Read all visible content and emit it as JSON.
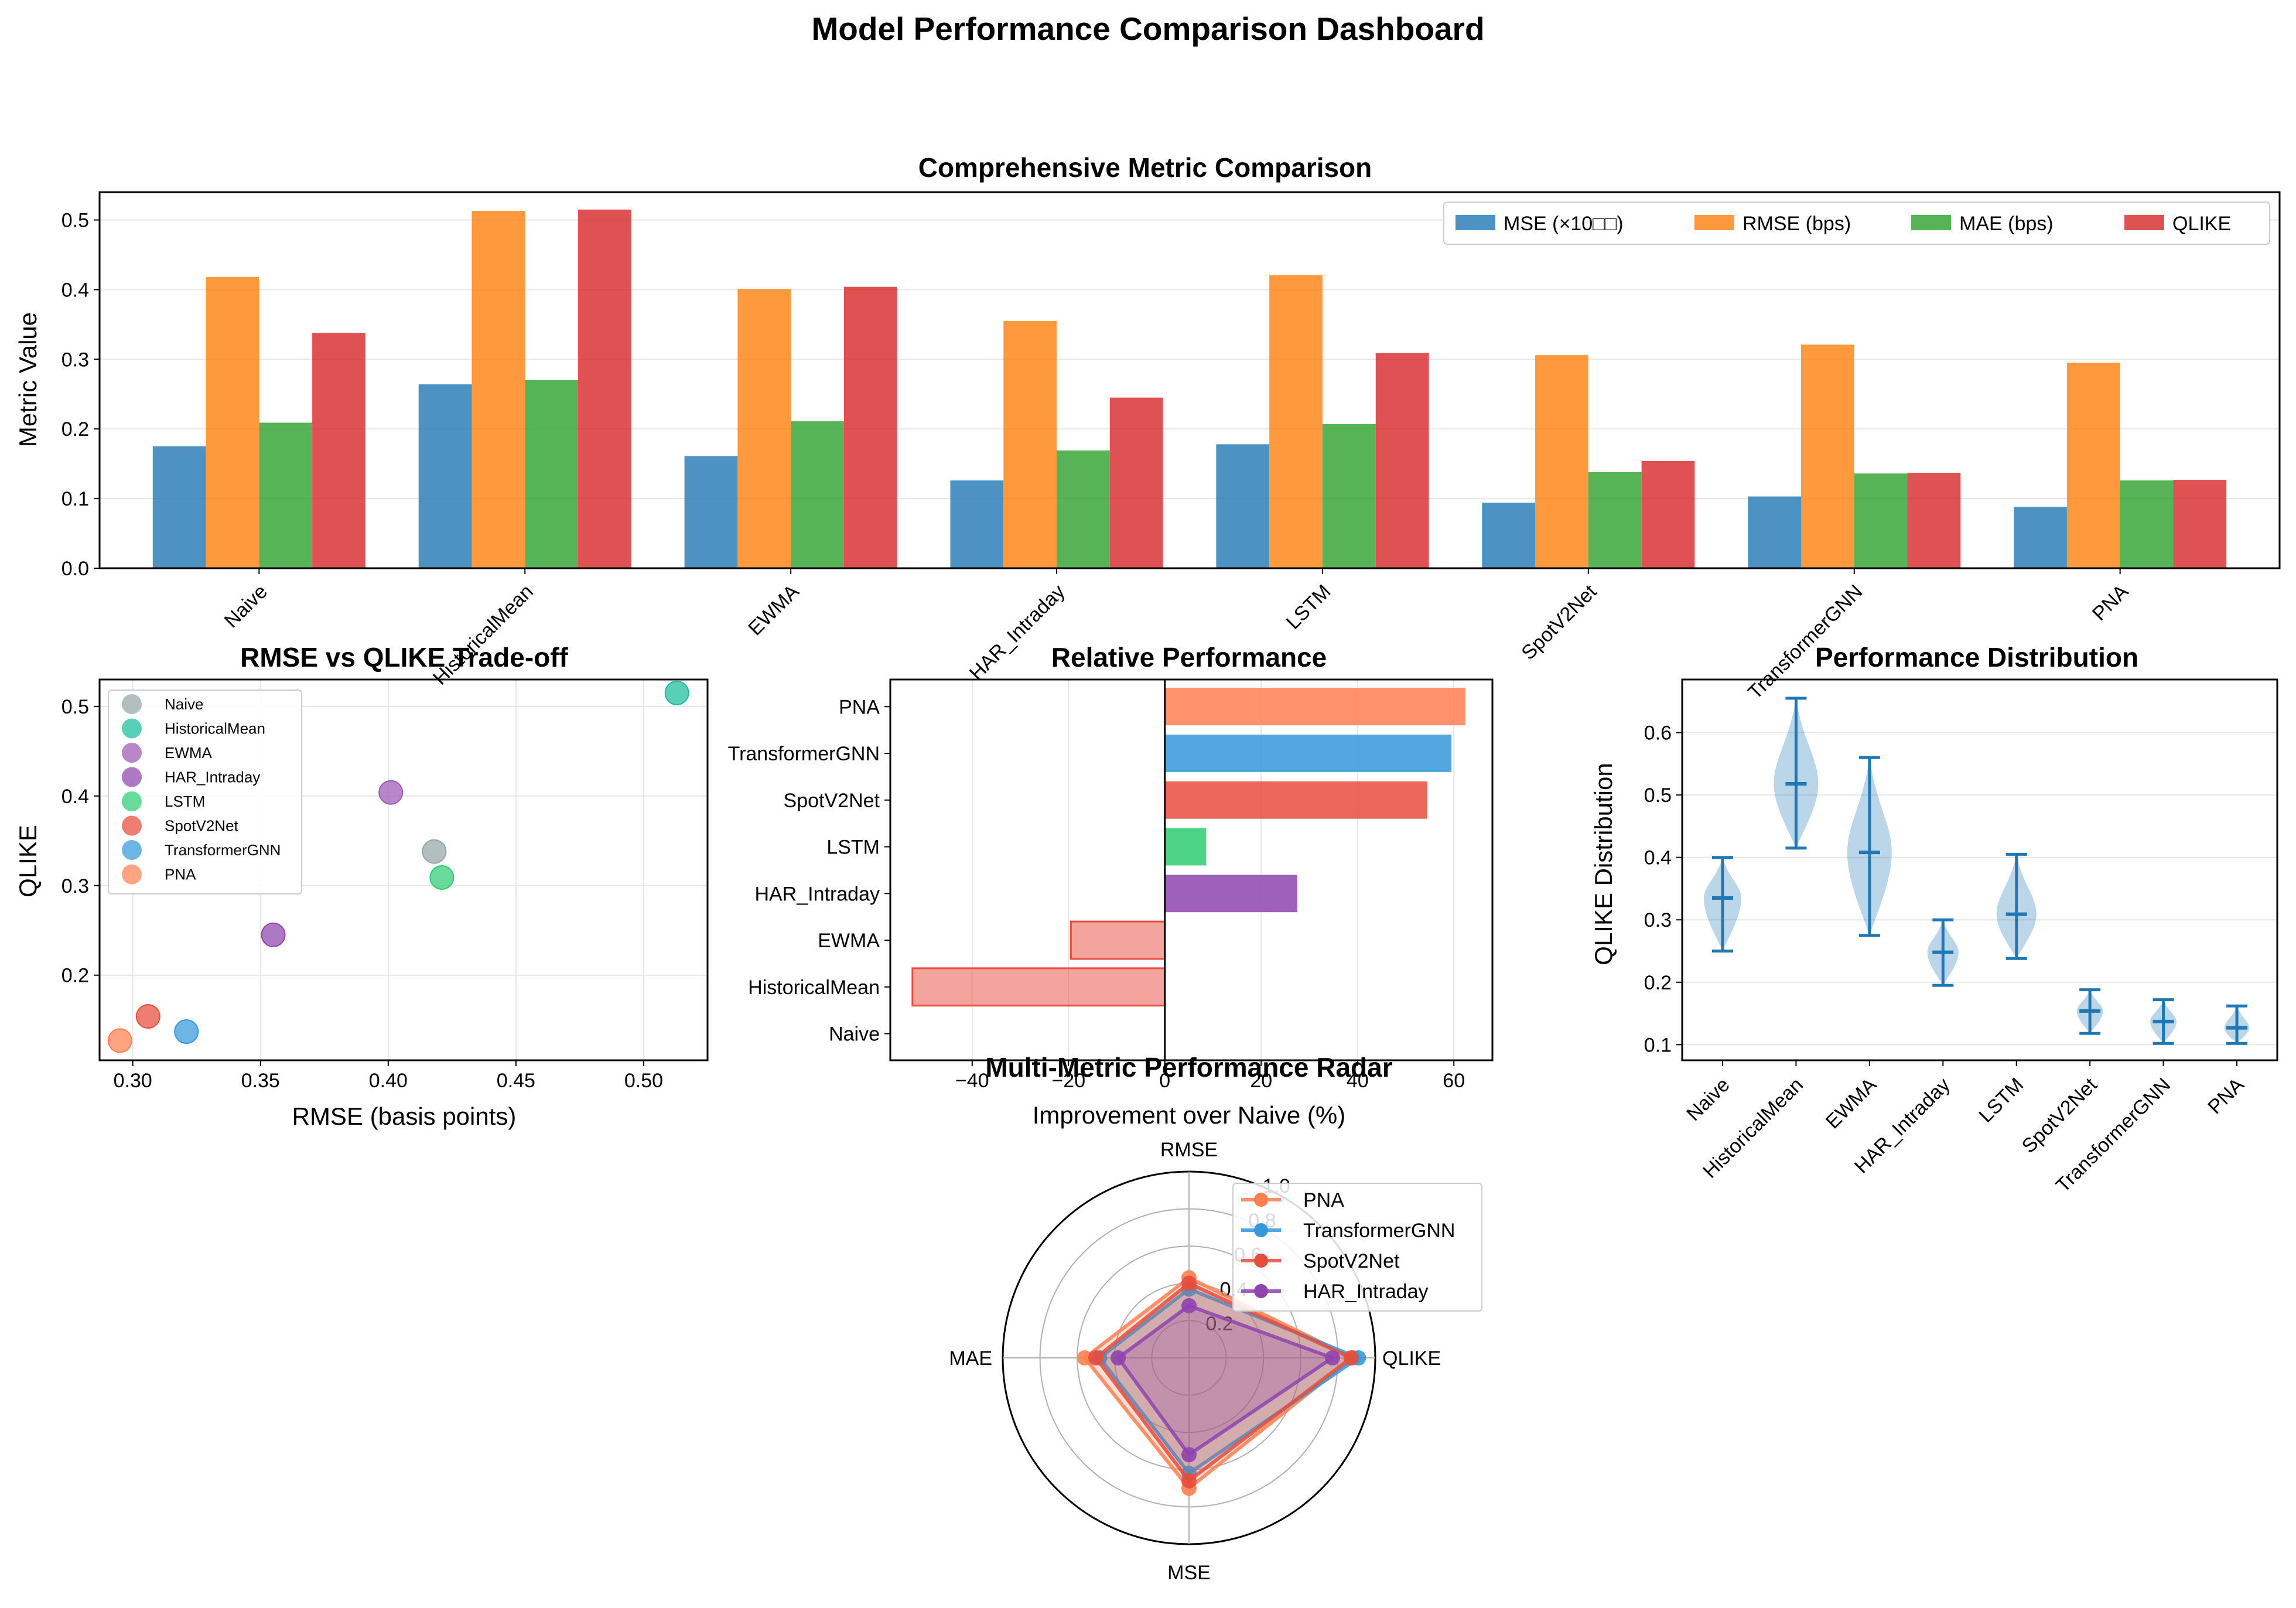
{
  "suptitle": "Model Performance Comparison Dashboard",
  "colors": {
    "mse": "#1f77b4",
    "rmse": "#ff7f0e",
    "mae": "#2ca02c",
    "qlike": "#d62728",
    "grid": "#e6e6e6"
  },
  "chart_data": [
    {
      "type": "bar",
      "title": "Comprehensive Metric Comparison",
      "xlabel": "",
      "ylabel": "Metric Value",
      "ylim": [
        0,
        0.54
      ],
      "yticks": [
        "0.0",
        "0.1",
        "0.2",
        "0.3",
        "0.4",
        "0.5"
      ],
      "categories": [
        "Naive",
        "HistoricalMean",
        "EWMA",
        "HAR_Intraday",
        "LSTM",
        "SpotV2Net",
        "TransformerGNN",
        "PNA"
      ],
      "legend_position": "top-right",
      "grid": true,
      "series": [
        {
          "name": "MSE (×10□□)",
          "color": "#1f77b4",
          "values": [
            0.175,
            0.264,
            0.161,
            0.126,
            0.178,
            0.094,
            0.103,
            0.088
          ]
        },
        {
          "name": "RMSE (bps)",
          "color": "#ff7f0e",
          "values": [
            0.418,
            0.513,
            0.401,
            0.355,
            0.421,
            0.306,
            0.321,
            0.295
          ]
        },
        {
          "name": "MAE (bps)",
          "color": "#2ca02c",
          "values": [
            0.209,
            0.27,
            0.211,
            0.169,
            0.207,
            0.138,
            0.136,
            0.126
          ]
        },
        {
          "name": "QLIKE",
          "color": "#d62728",
          "values": [
            0.338,
            0.515,
            0.404,
            0.245,
            0.309,
            0.154,
            0.137,
            0.127
          ]
        }
      ]
    },
    {
      "type": "scatter",
      "title": "RMSE vs QLIKE Trade-off",
      "xlabel": "RMSE (basis points)",
      "ylabel": "QLIKE",
      "xlim": [
        0.287,
        0.525
      ],
      "ylim": [
        0.105,
        0.53
      ],
      "xticks": [
        "0.30",
        "0.35",
        "0.40",
        "0.45",
        "0.50"
      ],
      "yticks": [
        "0.2",
        "0.3",
        "0.4",
        "0.5"
      ],
      "legend_position": "upper-left",
      "grid": true,
      "points": [
        {
          "name": "Naive",
          "x": 0.418,
          "y": 0.338,
          "color": "#95a5a6"
        },
        {
          "name": "HistoricalMean",
          "x": 0.513,
          "y": 0.515,
          "color": "#1abc9c"
        },
        {
          "name": "EWMA",
          "x": 0.401,
          "y": 0.404,
          "color": "#9b59b6"
        },
        {
          "name": "HAR_Intraday",
          "x": 0.355,
          "y": 0.245,
          "color": "#8e44ad"
        },
        {
          "name": "LSTM",
          "x": 0.421,
          "y": 0.309,
          "color": "#2ecc71"
        },
        {
          "name": "SpotV2Net",
          "x": 0.306,
          "y": 0.154,
          "color": "#e74c3c"
        },
        {
          "name": "TransformerGNN",
          "x": 0.321,
          "y": 0.137,
          "color": "#3498db"
        },
        {
          "name": "PNA",
          "x": 0.295,
          "y": 0.127,
          "color": "#ff7f50"
        }
      ]
    },
    {
      "type": "bar",
      "orientation": "horizontal",
      "title": "Relative Performance",
      "xlabel": "Improvement over Naive (%)",
      "ylabel": "",
      "xlim": [
        -57,
        68
      ],
      "xticks": [
        "−40",
        "−20",
        "0",
        "20",
        "40",
        "60"
      ],
      "grid": true,
      "categories": [
        "Naive",
        "HistoricalMean",
        "EWMA",
        "HAR_Intraday",
        "LSTM",
        "SpotV2Net",
        "TransformerGNN",
        "PNA"
      ],
      "values": [
        0,
        -52.4,
        -19.5,
        27.5,
        8.6,
        54.5,
        59.5,
        62.4
      ],
      "colors": [
        "#e74c3c",
        "#e74c3c",
        "#e74c3c",
        "#8e44ad",
        "#2ecc71",
        "#e74c3c",
        "#3498db",
        "#ff7f50"
      ],
      "opacities": [
        0.5,
        0.5,
        0.5,
        0.85,
        0.85,
        0.85,
        0.85,
        0.85
      ]
    },
    {
      "type": "violin",
      "title": "Performance Distribution",
      "xlabel": "",
      "ylabel": "QLIKE Distribution",
      "ylim": [
        0.075,
        0.685
      ],
      "yticks": [
        "0.1",
        "0.2",
        "0.3",
        "0.4",
        "0.5",
        "0.6"
      ],
      "grid": true,
      "categories": [
        "Naive",
        "HistoricalMean",
        "EWMA",
        "HAR_Intraday",
        "LSTM",
        "SpotV2Net",
        "TransformerGNN",
        "PNA"
      ],
      "min": [
        0.25,
        0.415,
        0.275,
        0.195,
        0.238,
        0.118,
        0.102,
        0.102
      ],
      "max": [
        0.4,
        0.655,
        0.56,
        0.3,
        0.405,
        0.188,
        0.172,
        0.162
      ],
      "mean": [
        0.335,
        0.518,
        0.408,
        0.248,
        0.309,
        0.154,
        0.137,
        0.127
      ],
      "color": "#1f77b4"
    },
    {
      "type": "radar",
      "title": "Multi-Metric Performance Radar",
      "axes": [
        "RMSE",
        "QLIKE",
        "MSE",
        "MAE"
      ],
      "rlim": [
        0,
        1.0
      ],
      "rticks": [
        "0.2",
        "0.4",
        "0.6",
        "0.8",
        "1.0"
      ],
      "legend_position": "upper-right",
      "series": [
        {
          "name": "PNA",
          "color": "#ff7f50",
          "values": [
            0.43,
            0.88,
            0.7,
            0.56
          ]
        },
        {
          "name": "TransformerGNN",
          "color": "#3498db",
          "values": [
            0.37,
            0.91,
            0.62,
            0.48
          ]
        },
        {
          "name": "SpotV2Net",
          "color": "#e74c3c",
          "values": [
            0.4,
            0.87,
            0.66,
            0.5
          ]
        },
        {
          "name": "HAR_Intraday",
          "color": "#8e44ad",
          "values": [
            0.28,
            0.77,
            0.52,
            0.38
          ]
        }
      ]
    }
  ]
}
